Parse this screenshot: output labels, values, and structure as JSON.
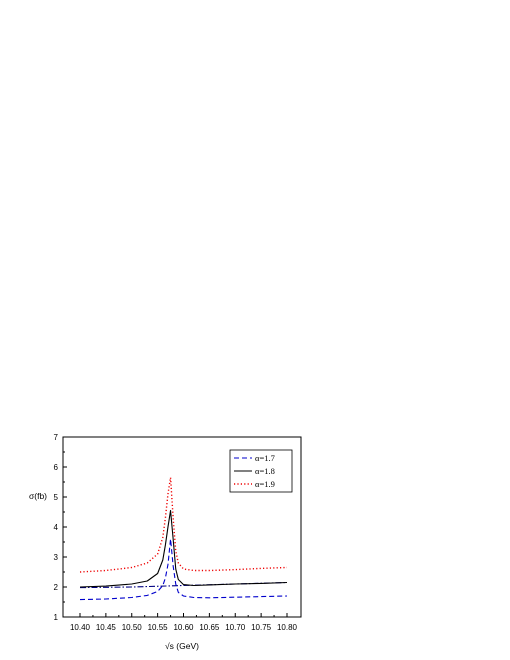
{
  "chart_data": {
    "type": "line",
    "xlabel": "√s (GeV)",
    "ylabel": "σ(fb)",
    "xlim": [
      10.4,
      10.8
    ],
    "ylim": [
      1,
      7
    ],
    "x_ticks": [
      "10.40",
      "10.45",
      "10.50",
      "10.55",
      "10.60",
      "10.65",
      "10.70",
      "10.75",
      "10.80"
    ],
    "y_ticks": [
      "1",
      "2",
      "3",
      "4",
      "5",
      "6",
      "7"
    ],
    "grid": false,
    "legend_position": "top-right",
    "series": [
      {
        "name": "α=1.7",
        "color": "#0000cc",
        "style": "dashed",
        "x": [
          10.4,
          10.45,
          10.5,
          10.53,
          10.55,
          10.56,
          10.565,
          10.57,
          10.575,
          10.58,
          10.585,
          10.59,
          10.6,
          10.62,
          10.65,
          10.7,
          10.75,
          10.8
        ],
        "y": [
          1.58,
          1.6,
          1.65,
          1.72,
          1.85,
          2.05,
          2.3,
          2.75,
          3.6,
          2.7,
          2.1,
          1.82,
          1.7,
          1.65,
          1.64,
          1.66,
          1.68,
          1.7
        ]
      },
      {
        "name": "α=1.8",
        "color": "#000000",
        "style": "solid",
        "x": [
          10.4,
          10.45,
          10.5,
          10.53,
          10.55,
          10.56,
          10.565,
          10.57,
          10.575,
          10.58,
          10.585,
          10.59,
          10.6,
          10.62,
          10.65,
          10.7,
          10.75,
          10.8
        ],
        "y": [
          2.0,
          2.03,
          2.1,
          2.2,
          2.45,
          2.9,
          3.4,
          4.0,
          4.55,
          3.6,
          2.6,
          2.25,
          2.08,
          2.05,
          2.07,
          2.1,
          2.12,
          2.15
        ]
      },
      {
        "name": "α=1.9",
        "color": "#ee0000",
        "style": "dotted",
        "x": [
          10.4,
          10.45,
          10.5,
          10.53,
          10.55,
          10.56,
          10.565,
          10.57,
          10.575,
          10.58,
          10.585,
          10.59,
          10.6,
          10.62,
          10.65,
          10.7,
          10.75,
          10.8
        ],
        "y": [
          2.5,
          2.55,
          2.65,
          2.8,
          3.1,
          3.65,
          4.3,
          5.1,
          5.65,
          4.3,
          3.2,
          2.8,
          2.6,
          2.55,
          2.55,
          2.58,
          2.62,
          2.65
        ]
      },
      {
        "name": "",
        "color": "#000080",
        "style": "dashdot",
        "x": [
          10.4,
          10.5,
          10.6,
          10.7,
          10.8
        ],
        "y": [
          1.98,
          2.0,
          2.05,
          2.1,
          2.15
        ]
      }
    ]
  }
}
